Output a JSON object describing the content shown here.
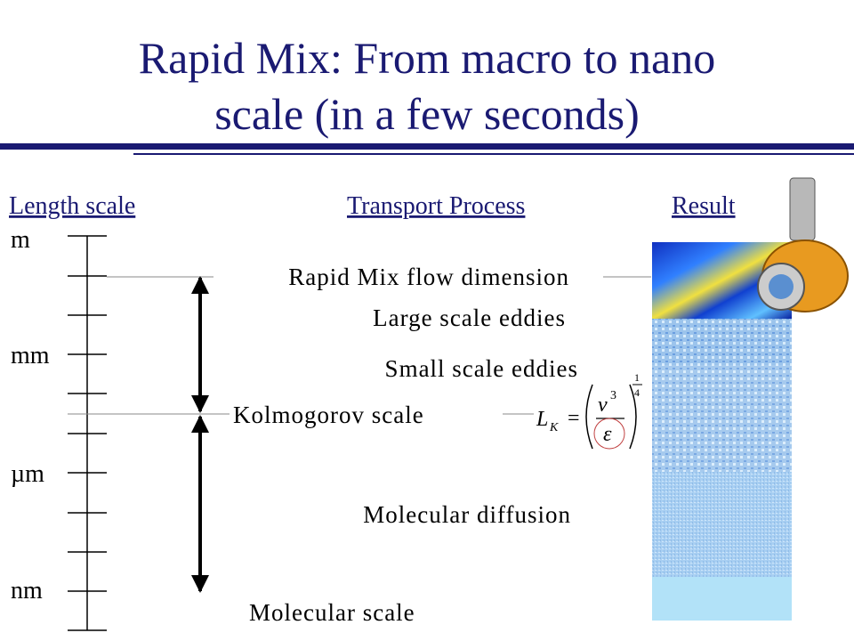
{
  "title": {
    "line1": "Rapid Mix: From macro to nano",
    "line2": "scale (in a few seconds)"
  },
  "headers": [
    "Length scale",
    "Transport Process",
    "Result"
  ],
  "scales": [
    "m",
    "mm",
    "µm",
    "nm"
  ],
  "processes": [
    "Rapid Mix flow dimension",
    "Large scale eddies",
    "Small scale eddies",
    "Kolmogorov scale",
    "Molecular diffusion",
    "Molecular scale"
  ],
  "formula": {
    "symbol": "L",
    "subscript": "K",
    "equals": "=",
    "numerator": "ν",
    "numerator_power": "3",
    "denominator": "ε",
    "exponent_numerator": "1",
    "exponent_denominator": "4"
  }
}
